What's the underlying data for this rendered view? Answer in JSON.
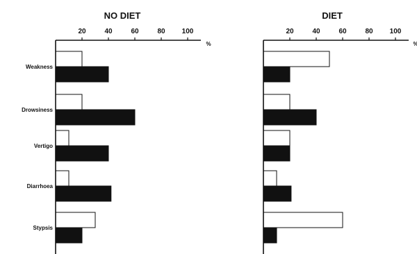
{
  "colors": {
    "open": "#ffffff",
    "filled": "#111111",
    "stroke": "#111111"
  },
  "chart_data": [
    {
      "type": "bar",
      "title": "NO DIET",
      "orientation": "horizontal",
      "categories": [
        "Weakness",
        "Drowsiness",
        "Vertigo",
        "Diarrhoea",
        "Stypsis"
      ],
      "series": [
        {
          "values": [
            20,
            20,
            10,
            10,
            30
          ],
          "fill": "open"
        },
        {
          "values": [
            40,
            60,
            40,
            42,
            20
          ],
          "fill": "filled"
        }
      ],
      "xticks": [
        20,
        40,
        60,
        80,
        100
      ],
      "xunit": "%",
      "xlim": [
        0,
        110
      ]
    },
    {
      "type": "bar",
      "title": "DIET",
      "orientation": "horizontal",
      "categories": [
        "Weakness",
        "Drowsiness",
        "Vertigo",
        "Diarrhoea",
        "Stypsis"
      ],
      "series": [
        {
          "values": [
            50,
            20,
            20,
            10,
            60
          ],
          "fill": "open"
        },
        {
          "values": [
            20,
            40,
            20,
            21,
            10
          ],
          "fill": "filled"
        }
      ],
      "xticks": [
        20,
        40,
        60,
        80,
        100
      ],
      "xunit": "%",
      "xlim": [
        0,
        110
      ]
    }
  ]
}
